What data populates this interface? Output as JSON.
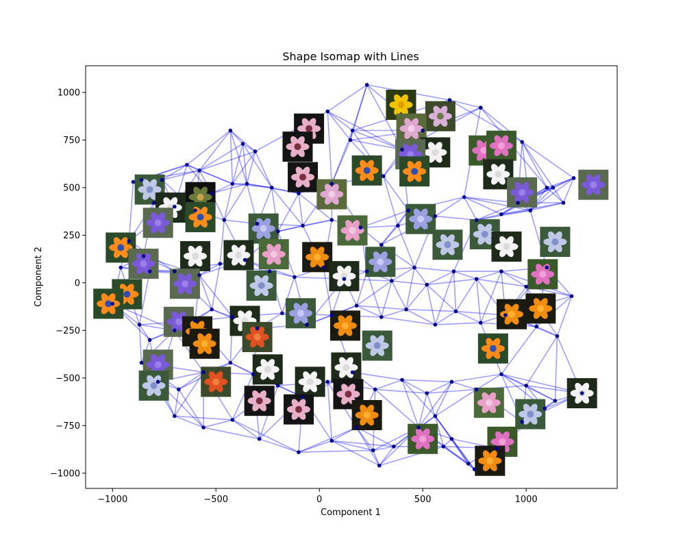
{
  "chart_data": {
    "type": "scatter",
    "title": "Shape Isomap with Lines",
    "xlabel": "Component 1",
    "ylabel": "Component 2",
    "xlim": [
      -1130,
      1440
    ],
    "ylim": [
      -1080,
      1140
    ],
    "xticks": [
      -1000,
      -500,
      0,
      500,
      1000
    ],
    "yticks": [
      -1000,
      -750,
      -500,
      -250,
      0,
      250,
      500,
      750,
      1000
    ],
    "grid": false,
    "colors": {
      "points": "#00008b",
      "lines": "#0000ff",
      "frame": "#000000"
    },
    "points": [
      {
        "x": 230,
        "y": 1040
      },
      {
        "x": 40,
        "y": 900
      },
      {
        "x": 160,
        "y": 800
      },
      {
        "x": 150,
        "y": 750
      },
      {
        "x": 310,
        "y": 560
      },
      {
        "x": -430,
        "y": 800
      },
      {
        "x": -370,
        "y": 730
      },
      {
        "x": -310,
        "y": 690
      },
      {
        "x": -580,
        "y": 590
      },
      {
        "x": -640,
        "y": 620
      },
      {
        "x": -900,
        "y": 530
      },
      {
        "x": -860,
        "y": 540
      },
      {
        "x": -760,
        "y": 540
      },
      {
        "x": -520,
        "y": 470
      },
      {
        "x": -420,
        "y": 520
      },
      {
        "x": -350,
        "y": 520
      },
      {
        "x": -230,
        "y": 500
      },
      {
        "x": -100,
        "y": 470
      },
      {
        "x": 60,
        "y": 520
      },
      {
        "x": -800,
        "y": 420
      },
      {
        "x": -700,
        "y": 400
      },
      {
        "x": -600,
        "y": 380
      },
      {
        "x": -460,
        "y": 330
      },
      {
        "x": -300,
        "y": 310
      },
      {
        "x": -200,
        "y": 270
      },
      {
        "x": -80,
        "y": 300
      },
      {
        "x": 60,
        "y": 330
      },
      {
        "x": 200,
        "y": 290
      },
      {
        "x": 300,
        "y": 200
      },
      {
        "x": 380,
        "y": 300
      },
      {
        "x": 430,
        "y": 380
      },
      {
        "x": 560,
        "y": 350
      },
      {
        "x": 700,
        "y": 450
      },
      {
        "x": 760,
        "y": 330
      },
      {
        "x": 880,
        "y": 360
      },
      {
        "x": 960,
        "y": 420
      },
      {
        "x": 1020,
        "y": 380
      },
      {
        "x": 1100,
        "y": 500
      },
      {
        "x": 1180,
        "y": 420
      },
      {
        "x": 1230,
        "y": 550
      },
      {
        "x": 1130,
        "y": 500
      },
      {
        "x": 980,
        "y": 740
      },
      {
        "x": 780,
        "y": 920
      },
      {
        "x": 630,
        "y": 960
      },
      {
        "x": 500,
        "y": 800
      },
      {
        "x": 400,
        "y": 700
      },
      {
        "x": -920,
        "y": 220
      },
      {
        "x": -850,
        "y": 140
      },
      {
        "x": -820,
        "y": 60
      },
      {
        "x": -960,
        "y": 80
      },
      {
        "x": -700,
        "y": 60
      },
      {
        "x": -580,
        "y": 40
      },
      {
        "x": -480,
        "y": 100
      },
      {
        "x": -360,
        "y": 120
      },
      {
        "x": -240,
        "y": 60
      },
      {
        "x": -120,
        "y": 30
      },
      {
        "x": 20,
        "y": 80
      },
      {
        "x": 120,
        "y": 20
      },
      {
        "x": 230,
        "y": 60
      },
      {
        "x": 350,
        "y": 10
      },
      {
        "x": 460,
        "y": 80
      },
      {
        "x": 520,
        "y": -10
      },
      {
        "x": 650,
        "y": 60
      },
      {
        "x": 760,
        "y": 20
      },
      {
        "x": 880,
        "y": 60
      },
      {
        "x": 1000,
        "y": -20
      },
      {
        "x": 1100,
        "y": 80
      },
      {
        "x": 1220,
        "y": -70
      },
      {
        "x": -1000,
        "y": -110
      },
      {
        "x": -870,
        "y": -220
      },
      {
        "x": -820,
        "y": -300
      },
      {
        "x": -700,
        "y": -250
      },
      {
        "x": -600,
        "y": -200
      },
      {
        "x": -520,
        "y": -140
      },
      {
        "x": -420,
        "y": -180
      },
      {
        "x": -300,
        "y": -240
      },
      {
        "x": -180,
        "y": -160
      },
      {
        "x": -60,
        "y": -220
      },
      {
        "x": 60,
        "y": -170
      },
      {
        "x": 180,
        "y": -120
      },
      {
        "x": 300,
        "y": -180
      },
      {
        "x": 420,
        "y": -140
      },
      {
        "x": 560,
        "y": -220
      },
      {
        "x": 660,
        "y": -150
      },
      {
        "x": 780,
        "y": -210
      },
      {
        "x": 900,
        "y": -170
      },
      {
        "x": 1050,
        "y": -230
      },
      {
        "x": 1150,
        "y": -280
      },
      {
        "x": -860,
        "y": -420
      },
      {
        "x": -780,
        "y": -520
      },
      {
        "x": -680,
        "y": -560
      },
      {
        "x": -560,
        "y": -470
      },
      {
        "x": -430,
        "y": -420
      },
      {
        "x": -320,
        "y": -480
      },
      {
        "x": -200,
        "y": -540
      },
      {
        "x": -80,
        "y": -600
      },
      {
        "x": 40,
        "y": -520
      },
      {
        "x": 160,
        "y": -470
      },
      {
        "x": 270,
        "y": -560
      },
      {
        "x": 400,
        "y": -510
      },
      {
        "x": 520,
        "y": -580
      },
      {
        "x": 640,
        "y": -520
      },
      {
        "x": 760,
        "y": -560
      },
      {
        "x": 880,
        "y": -480
      },
      {
        "x": 1000,
        "y": -540
      },
      {
        "x": 1140,
        "y": -620
      },
      {
        "x": 1270,
        "y": -580
      },
      {
        "x": -700,
        "y": -700
      },
      {
        "x": -560,
        "y": -760
      },
      {
        "x": -420,
        "y": -720
      },
      {
        "x": -290,
        "y": -820
      },
      {
        "x": -100,
        "y": -890
      },
      {
        "x": 60,
        "y": -830
      },
      {
        "x": 180,
        "y": -760
      },
      {
        "x": 260,
        "y": -880
      },
      {
        "x": 290,
        "y": -960
      },
      {
        "x": 360,
        "y": -860
      },
      {
        "x": 480,
        "y": -760
      },
      {
        "x": 600,
        "y": -860
      },
      {
        "x": 720,
        "y": -950
      },
      {
        "x": 750,
        "y": -980
      },
      {
        "x": 860,
        "y": -870
      },
      {
        "x": 980,
        "y": -730
      },
      {
        "x": 1090,
        "y": -660
      },
      {
        "x": 640,
        "y": -820
      },
      {
        "x": 560,
        "y": -700
      }
    ],
    "thumbnails": [
      {
        "x": 395,
        "y": 935,
        "kind": "yellow-daisy"
      },
      {
        "x": 585,
        "y": 875,
        "kind": "orchid-tree"
      },
      {
        "x": -50,
        "y": 810,
        "kind": "slipper-orchid"
      },
      {
        "x": -105,
        "y": 715,
        "kind": "slipper-orchid"
      },
      {
        "x": 445,
        "y": 810,
        "kind": "pink-daisy"
      },
      {
        "x": 560,
        "y": 685,
        "kind": "white-orchid"
      },
      {
        "x": 440,
        "y": 675,
        "kind": "purple"
      },
      {
        "x": 230,
        "y": 590,
        "kind": "bird-of-paradise"
      },
      {
        "x": 460,
        "y": 585,
        "kind": "bird-of-paradise"
      },
      {
        "x": 795,
        "y": 695,
        "kind": "pink-hibiscus"
      },
      {
        "x": 880,
        "y": 720,
        "kind": "pink-hibiscus"
      },
      {
        "x": 865,
        "y": 570,
        "kind": "white-orchid"
      },
      {
        "x": 980,
        "y": 475,
        "kind": "purple"
      },
      {
        "x": 1325,
        "y": 515,
        "kind": "purple"
      },
      {
        "x": -820,
        "y": 490,
        "kind": "globe-thistle"
      },
      {
        "x": -575,
        "y": 450,
        "kind": "autumn"
      },
      {
        "x": -80,
        "y": 555,
        "kind": "slipper-orchid"
      },
      {
        "x": 60,
        "y": 465,
        "kind": "pink-daisy"
      },
      {
        "x": -720,
        "y": 395,
        "kind": "white-orchid"
      },
      {
        "x": -780,
        "y": 315,
        "kind": "purple"
      },
      {
        "x": -575,
        "y": 345,
        "kind": "bird-of-paradise"
      },
      {
        "x": -270,
        "y": 285,
        "kind": "lavender"
      },
      {
        "x": 160,
        "y": 275,
        "kind": "pink"
      },
      {
        "x": 490,
        "y": 335,
        "kind": "lavender"
      },
      {
        "x": 620,
        "y": 200,
        "kind": "globe-thistle"
      },
      {
        "x": 800,
        "y": 255,
        "kind": "globe-thistle"
      },
      {
        "x": 1140,
        "y": 215,
        "kind": "globe-thistle"
      },
      {
        "x": 905,
        "y": 190,
        "kind": "white-orchid"
      },
      {
        "x": -960,
        "y": 185,
        "kind": "bird-of-paradise"
      },
      {
        "x": -850,
        "y": 100,
        "kind": "purple"
      },
      {
        "x": -600,
        "y": 140,
        "kind": "white-orchid"
      },
      {
        "x": -390,
        "y": 145,
        "kind": "white-orchid"
      },
      {
        "x": -220,
        "y": 150,
        "kind": "pink"
      },
      {
        "x": -10,
        "y": 135,
        "kind": "orange"
      },
      {
        "x": 295,
        "y": 110,
        "kind": "lavender"
      },
      {
        "x": 120,
        "y": 35,
        "kind": "white-orchid"
      },
      {
        "x": -650,
        "y": -5,
        "kind": "purple"
      },
      {
        "x": -280,
        "y": -15,
        "kind": "globe-thistle"
      },
      {
        "x": -930,
        "y": -60,
        "kind": "bird-of-paradise"
      },
      {
        "x": -1020,
        "y": -110,
        "kind": "bird-of-paradise"
      },
      {
        "x": 1080,
        "y": 45,
        "kind": "pink-hibiscus"
      },
      {
        "x": 1070,
        "y": -135,
        "kind": "orange"
      },
      {
        "x": 930,
        "y": -165,
        "kind": "orange"
      },
      {
        "x": -90,
        "y": -160,
        "kind": "lavender"
      },
      {
        "x": 125,
        "y": -225,
        "kind": "orange"
      },
      {
        "x": -360,
        "y": -200,
        "kind": "white-orchid"
      },
      {
        "x": -680,
        "y": -205,
        "kind": "purple"
      },
      {
        "x": -590,
        "y": -255,
        "kind": "orange"
      },
      {
        "x": -555,
        "y": -320,
        "kind": "orange"
      },
      {
        "x": -300,
        "y": -285,
        "kind": "red-lily"
      },
      {
        "x": 280,
        "y": -330,
        "kind": "globe-thistle"
      },
      {
        "x": 840,
        "y": -345,
        "kind": "bird-of-paradise"
      },
      {
        "x": -780,
        "y": -430,
        "kind": "purple"
      },
      {
        "x": -800,
        "y": -540,
        "kind": "globe-thistle"
      },
      {
        "x": -500,
        "y": -520,
        "kind": "red-lily"
      },
      {
        "x": -250,
        "y": -455,
        "kind": "white-orchid"
      },
      {
        "x": -45,
        "y": -520,
        "kind": "white-orchid"
      },
      {
        "x": 130,
        "y": -445,
        "kind": "white-orchid"
      },
      {
        "x": 140,
        "y": -585,
        "kind": "slipper-orchid"
      },
      {
        "x": -290,
        "y": -620,
        "kind": "slipper-orchid"
      },
      {
        "x": -100,
        "y": -665,
        "kind": "slipper-orchid"
      },
      {
        "x": 230,
        "y": -695,
        "kind": "orange"
      },
      {
        "x": 820,
        "y": -630,
        "kind": "pink"
      },
      {
        "x": 1020,
        "y": -690,
        "kind": "globe-thistle"
      },
      {
        "x": 1270,
        "y": -580,
        "kind": "white-orchid"
      },
      {
        "x": 500,
        "y": -820,
        "kind": "pink-hibiscus"
      },
      {
        "x": 885,
        "y": -835,
        "kind": "pink-hibiscus"
      },
      {
        "x": 825,
        "y": -935,
        "kind": "orange"
      }
    ]
  }
}
